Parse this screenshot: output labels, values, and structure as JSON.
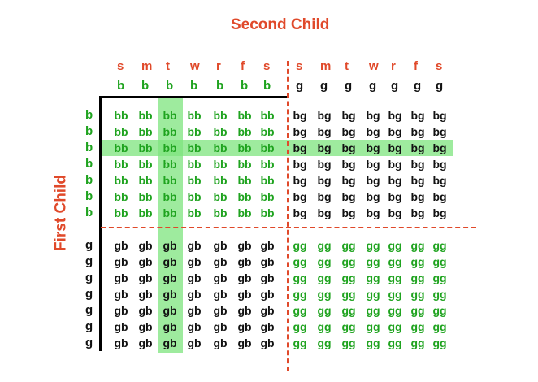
{
  "title_top": "Second Child",
  "title_left": "First  Child",
  "colors": {
    "red": "#e0492a",
    "green": "#1fa31f",
    "black": "#111111",
    "highlight": "#7ee47e"
  },
  "day_labels": [
    "s",
    "m",
    "t",
    "w",
    "r",
    "f",
    "s"
  ],
  "first_gender_rows": [
    "b",
    "b",
    "b",
    "b",
    "b",
    "b",
    "b",
    "g",
    "g",
    "g",
    "g",
    "g",
    "g",
    "g"
  ],
  "second_gender_cols": [
    "b",
    "b",
    "b",
    "b",
    "b",
    "b",
    "b",
    "g",
    "g",
    "g",
    "g",
    "g",
    "g",
    "g"
  ],
  "combos": {
    "bb": "bb",
    "bg": "bg",
    "gb": "gb",
    "gg": "gg"
  },
  "highlight": {
    "column_day": "t",
    "column_gender": "b",
    "row_day_index": 2,
    "row_gender": "b"
  }
}
